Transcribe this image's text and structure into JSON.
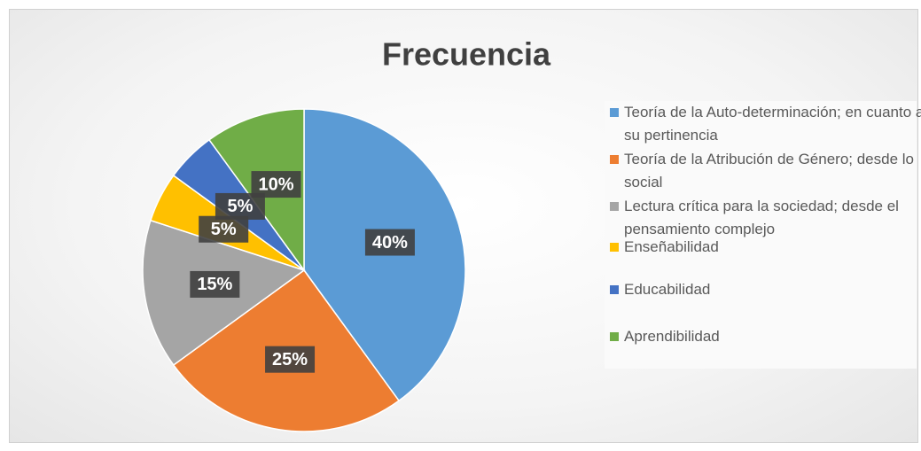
{
  "chart_data": {
    "type": "pie",
    "title": "Frecuencia",
    "categories": [
      "Teoría de la Auto-determinación; en cuanto a su pertinencia",
      "Teoría de la Atribución de Género; desde lo social",
      "Lectura crítica para la sociedad; desde el pensamiento complejo",
      "Enseñabilidad",
      "Educabilidad",
      "Aprendibilidad"
    ],
    "values": [
      40,
      25,
      15,
      5,
      5,
      10
    ],
    "value_labels": [
      "40%",
      "25%",
      "15%",
      "5%",
      "5%",
      "10%"
    ],
    "colors": [
      "#5b9bd5",
      "#ed7d31",
      "#a5a5a5",
      "#ffc000",
      "#4472c4",
      "#70ad47"
    ],
    "legend": "right"
  }
}
